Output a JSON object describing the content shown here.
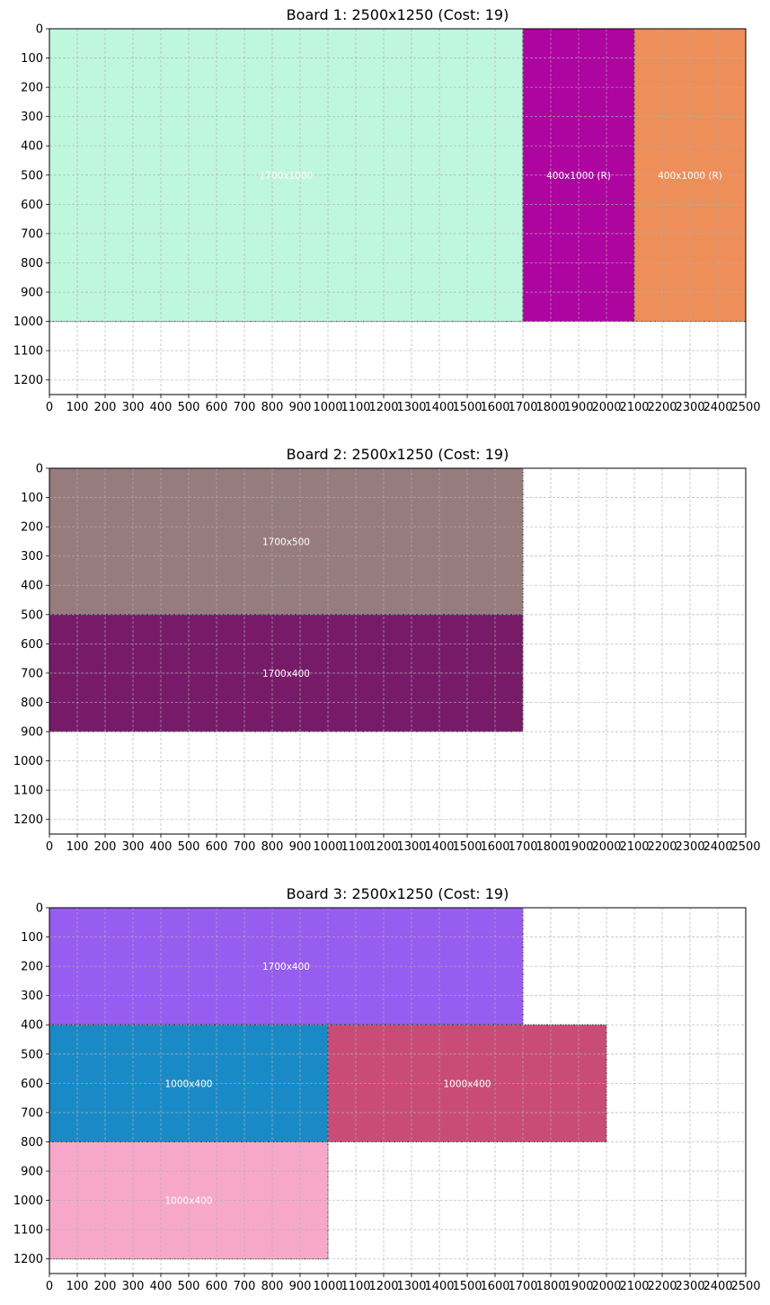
{
  "chart_data": [
    {
      "type": "board-layout",
      "title": "Board 1: 2500x1250 (Cost: 19)",
      "board": {
        "width": 2500,
        "height": 1250
      },
      "xlim": [
        0,
        2500
      ],
      "ylim": [
        1250,
        0
      ],
      "xticks": [
        0,
        100,
        200,
        300,
        400,
        500,
        600,
        700,
        800,
        900,
        1000,
        1100,
        1200,
        1300,
        1400,
        1500,
        1600,
        1700,
        1800,
        1900,
        2000,
        2100,
        2200,
        2300,
        2400,
        2500
      ],
      "yticks": [
        0,
        100,
        200,
        300,
        400,
        500,
        600,
        700,
        800,
        900,
        1000,
        1100,
        1200
      ],
      "grid": true,
      "pieces": [
        {
          "x": 0,
          "y": 0,
          "w": 1700,
          "h": 1000,
          "label": "1700x1000",
          "color": "#bff7de"
        },
        {
          "x": 1700,
          "y": 0,
          "w": 400,
          "h": 1000,
          "label": "400x1000 (R)",
          "color": "#ae04a0"
        },
        {
          "x": 2100,
          "y": 0,
          "w": 400,
          "h": 1000,
          "label": "400x1000 (R)",
          "color": "#ee8e59"
        }
      ]
    },
    {
      "type": "board-layout",
      "title": "Board 2: 2500x1250 (Cost: 19)",
      "board": {
        "width": 2500,
        "height": 1250
      },
      "xlim": [
        0,
        2500
      ],
      "ylim": [
        1250,
        0
      ],
      "xticks": [
        0,
        100,
        200,
        300,
        400,
        500,
        600,
        700,
        800,
        900,
        1000,
        1100,
        1200,
        1300,
        1400,
        1500,
        1600,
        1700,
        1800,
        1900,
        2000,
        2100,
        2200,
        2300,
        2400,
        2500
      ],
      "yticks": [
        0,
        100,
        200,
        300,
        400,
        500,
        600,
        700,
        800,
        900,
        1000,
        1100,
        1200
      ],
      "grid": true,
      "pieces": [
        {
          "x": 0,
          "y": 0,
          "w": 1700,
          "h": 500,
          "label": "1700x500",
          "color": "#977c7e"
        },
        {
          "x": 0,
          "y": 500,
          "w": 1700,
          "h": 400,
          "label": "1700x400",
          "color": "#771b69"
        }
      ]
    },
    {
      "type": "board-layout",
      "title": "Board 3: 2500x1250 (Cost: 19)",
      "board": {
        "width": 2500,
        "height": 1250
      },
      "xlim": [
        0,
        2500
      ],
      "ylim": [
        1250,
        0
      ],
      "xticks": [
        0,
        100,
        200,
        300,
        400,
        500,
        600,
        700,
        800,
        900,
        1000,
        1100,
        1200,
        1300,
        1400,
        1500,
        1600,
        1700,
        1800,
        1900,
        2000,
        2100,
        2200,
        2300,
        2400,
        2500
      ],
      "yticks": [
        0,
        100,
        200,
        300,
        400,
        500,
        600,
        700,
        800,
        900,
        1000,
        1100,
        1200
      ],
      "grid": true,
      "pieces": [
        {
          "x": 0,
          "y": 0,
          "w": 1700,
          "h": 400,
          "label": "1700x400",
          "color": "#975cf0"
        },
        {
          "x": 0,
          "y": 400,
          "w": 1000,
          "h": 400,
          "label": "1000x400",
          "color": "#1a8ac7"
        },
        {
          "x": 1000,
          "y": 400,
          "w": 1000,
          "h": 400,
          "label": "1000x400",
          "color": "#c94c76"
        },
        {
          "x": 0,
          "y": 800,
          "w": 1000,
          "h": 400,
          "label": "1000x400",
          "color": "#f7a8c8"
        }
      ]
    }
  ]
}
